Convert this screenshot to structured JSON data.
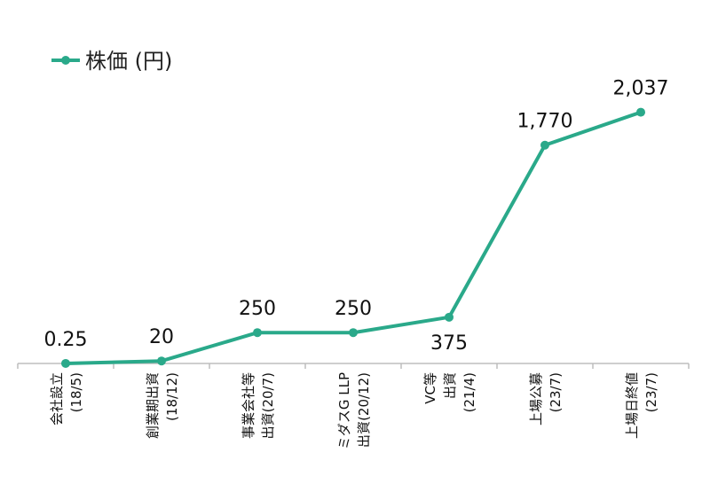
{
  "chart_data": {
    "type": "line",
    "title": "",
    "xlabel": "",
    "ylabel": "",
    "ylim": [
      0,
      2300
    ],
    "grid": false,
    "legend_position": "top-left",
    "line_color": "#2aa98a",
    "categories": [
      {
        "lines": [
          "会社設立",
          "(18/5)"
        ]
      },
      {
        "lines": [
          "創業期出資",
          "(18/12)"
        ]
      },
      {
        "lines": [
          "事業会社等",
          "出資(20/7)"
        ]
      },
      {
        "lines": [
          "ミダスG LLP",
          "出資(20/12)"
        ]
      },
      {
        "lines": [
          "VC等",
          "出資",
          "(21/4)"
        ]
      },
      {
        "lines": [
          "上場公募",
          "(23/7)"
        ]
      },
      {
        "lines": [
          "上場日終値",
          "(23/7)"
        ]
      }
    ],
    "series": [
      {
        "name": "株価 (円)",
        "values": [
          0.25,
          20,
          250,
          250,
          375,
          1770,
          2037
        ],
        "labels": [
          "0.25",
          "20",
          "250",
          "250",
          "375",
          "1,770",
          "2,037"
        ]
      }
    ]
  }
}
